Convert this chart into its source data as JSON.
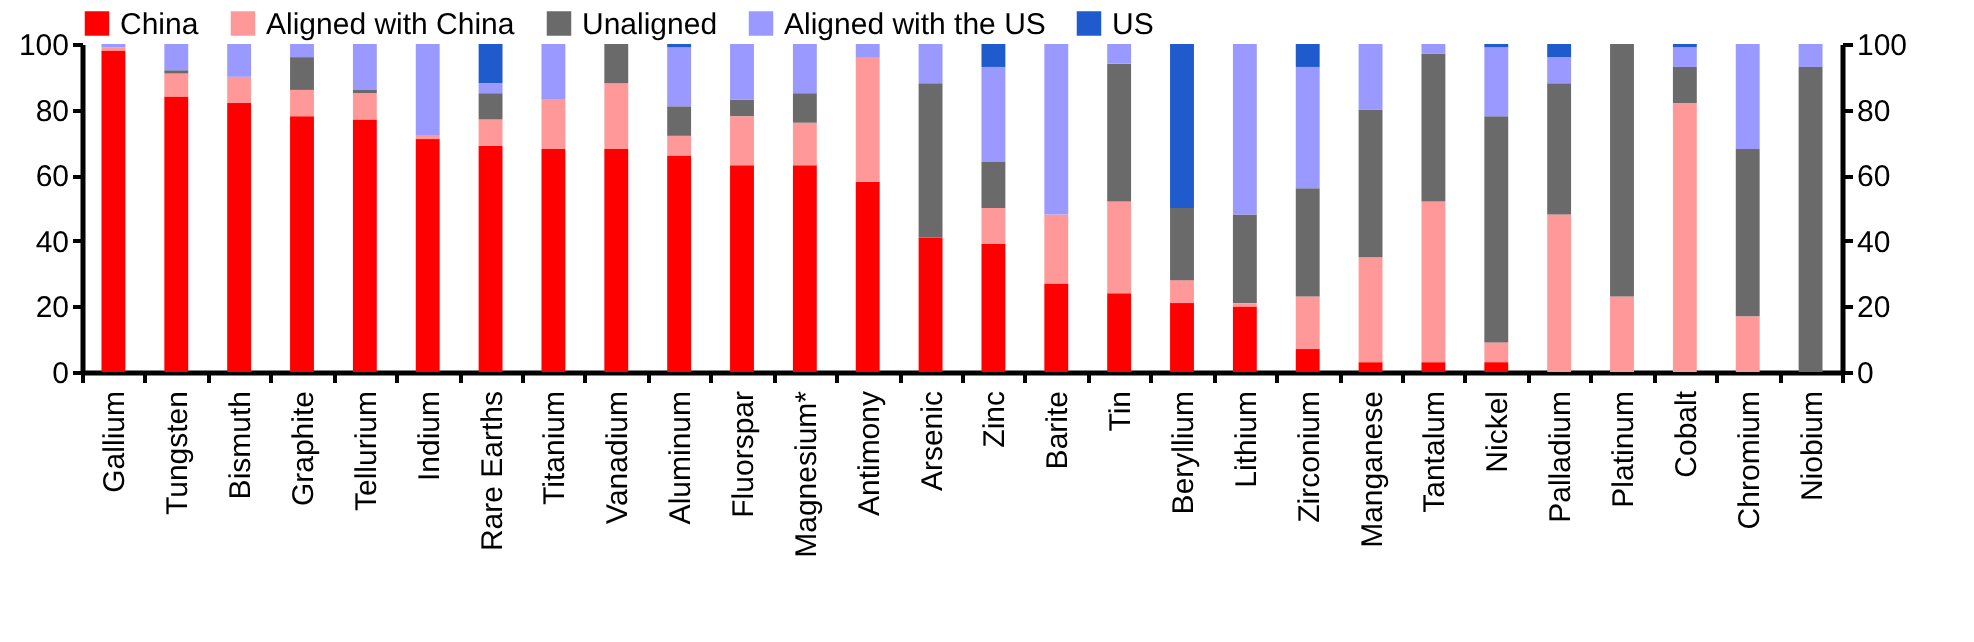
{
  "chart_data": {
    "type": "bar",
    "stacked": true,
    "categories": [
      "Gallium",
      "Tungsten",
      "Bismuth",
      "Graphite",
      "Tellurium",
      "Indium",
      "Rare Earths",
      "Titanium",
      "Vanadium",
      "Aluminum",
      "Fluorspar",
      "Magnesium*",
      "Antimony",
      "Arsenic",
      "Zinc",
      "Barite",
      "Tin",
      "Beryllium",
      "Lithium",
      "Zirconium",
      "Manganese",
      "Tantalum",
      "Nickel",
      "Palladium",
      "Platinum",
      "Cobalt",
      "Chromium",
      "Niobium"
    ],
    "series": [
      {
        "name": "China",
        "color": "#ff0000",
        "values": [
          98,
          84,
          82,
          78,
          77,
          71,
          69,
          68,
          68,
          66,
          63,
          63,
          58,
          41,
          39,
          27,
          24,
          21,
          20,
          7,
          3,
          3,
          3,
          0,
          0,
          0,
          0,
          0
        ]
      },
      {
        "name": "Aligned with China",
        "color": "#ff9999",
        "values": [
          1,
          7,
          8,
          8,
          8,
          1,
          8,
          15,
          20,
          6,
          15,
          13,
          38,
          0,
          11,
          21,
          28,
          7,
          1,
          16,
          32,
          49,
          6,
          48,
          23,
          82,
          17,
          0
        ]
      },
      {
        "name": "Unaligned",
        "color": "#6a6a6a",
        "values": [
          0,
          1,
          0,
          10,
          1,
          0,
          8,
          0,
          12,
          9,
          5,
          9,
          0,
          47,
          14,
          0,
          42,
          22,
          27,
          33,
          45,
          45,
          69,
          40,
          77,
          11,
          51,
          93
        ]
      },
      {
        "name": "Aligned with the US",
        "color": "#9999ff",
        "values": [
          1,
          8,
          10,
          4,
          14,
          28,
          3,
          17,
          0,
          18,
          17,
          15,
          4,
          12,
          29,
          52,
          6,
          0,
          52,
          37,
          20,
          3,
          21,
          8,
          0,
          6,
          32,
          7
        ]
      },
      {
        "name": "US",
        "color": "#1f5bcc",
        "values": [
          0,
          0,
          0,
          0,
          0,
          0,
          12,
          0,
          0,
          1,
          0,
          0,
          0,
          0,
          7,
          0,
          0,
          50,
          0,
          7,
          0,
          0,
          1,
          4,
          0,
          1,
          0,
          0
        ]
      }
    ],
    "ylim": [
      0,
      100
    ],
    "yticks": [
      0,
      20,
      40,
      60,
      80,
      100
    ],
    "y2lim": [
      0,
      100
    ],
    "y2ticks": [
      0,
      20,
      40,
      60,
      80,
      100
    ],
    "legend": "top",
    "grid": false
  }
}
